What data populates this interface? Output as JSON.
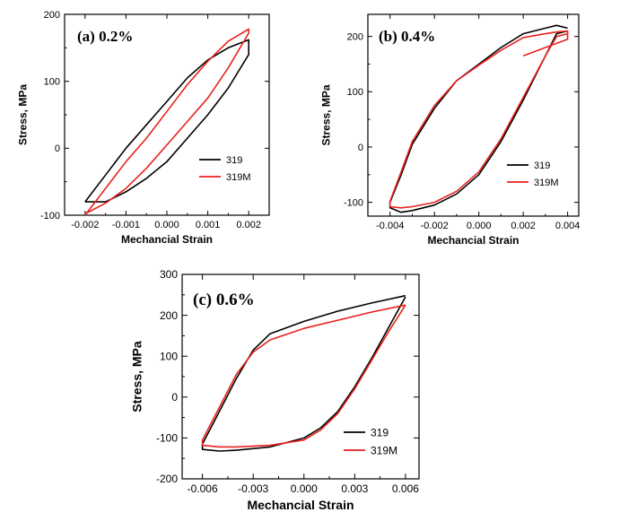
{
  "figure": {
    "colors": {
      "series_319": "#000000",
      "series_319M": "#e8211d",
      "axis": "#000000"
    }
  },
  "chart_data": [
    {
      "type": "line",
      "panel_label": "(a) 0.2%",
      "xlabel": "Mechancial Strain",
      "ylabel": "Stress, MPa",
      "xlim": [
        -0.0025,
        0.0025
      ],
      "ylim": [
        -100,
        200
      ],
      "xticks": [
        -0.002,
        -0.001,
        0.0,
        0.001,
        0.002
      ],
      "xtick_labels": [
        "-0.002",
        "-0.001",
        "0.000",
        "0.001",
        "0.002"
      ],
      "yticks": [
        -100,
        0,
        100,
        200
      ],
      "ytick_labels": [
        "-100",
        "0",
        "100",
        "200"
      ],
      "legend": {
        "position": "lower-right",
        "entries": [
          "319",
          "319M"
        ]
      },
      "series": [
        {
          "name": "319",
          "x": [
            -0.002,
            -0.0015,
            -0.001,
            -0.0005,
            0.0,
            0.0005,
            0.001,
            0.0015,
            0.002,
            0.002,
            0.0015,
            0.001,
            0.0005,
            0.0,
            -0.0005,
            -0.001,
            -0.0015,
            -0.002
          ],
          "y": [
            -80,
            -40,
            0,
            35,
            70,
            105,
            132,
            150,
            162,
            140,
            90,
            50,
            15,
            -20,
            -45,
            -65,
            -80,
            -80
          ]
        },
        {
          "name": "319M",
          "x": [
            -0.002,
            -0.0015,
            -0.001,
            -0.0005,
            0.0,
            0.0005,
            0.001,
            0.0015,
            0.002,
            0.002,
            0.0015,
            0.001,
            0.0005,
            0.0,
            -0.0005,
            -0.001,
            -0.0015,
            -0.002
          ],
          "y": [
            -100,
            -60,
            -20,
            15,
            55,
            95,
            130,
            160,
            178,
            172,
            120,
            75,
            40,
            5,
            -30,
            -60,
            -82,
            -98
          ]
        }
      ]
    },
    {
      "type": "line",
      "panel_label": "(b) 0.4%",
      "xlabel": "Mechancial Strain",
      "ylabel": "Stress, MPa",
      "xlim": [
        -0.005,
        0.0045
      ],
      "ylim": [
        -125,
        240
      ],
      "xticks": [
        -0.004,
        -0.002,
        0.0,
        0.002,
        0.004
      ],
      "xtick_labels": [
        "-0.004",
        "-0.002",
        "0.000",
        "0.002",
        "0.004"
      ],
      "yticks": [
        -100,
        0,
        100,
        200
      ],
      "ytick_labels": [
        "-100",
        "0",
        "100",
        "200"
      ],
      "legend": {
        "position": "lower-right",
        "entries": [
          "319",
          "319M"
        ]
      },
      "series": [
        {
          "name": "319",
          "x": [
            0.004,
            0.0035,
            0.003,
            0.002,
            0.001,
            0.0,
            -0.001,
            -0.002,
            -0.003,
            -0.0035,
            -0.004,
            -0.004,
            -0.0035,
            -0.003,
            -0.002,
            -0.001,
            0.0,
            0.001,
            0.002,
            0.003,
            0.0035,
            0.004
          ],
          "y": [
            210,
            205,
            165,
            85,
            10,
            -50,
            -85,
            -105,
            -115,
            -118,
            -110,
            -100,
            -50,
            5,
            70,
            120,
            150,
            180,
            205,
            215,
            220,
            215
          ]
        },
        {
          "name": "319M",
          "x": [
            0.004,
            0.0035,
            0.003,
            0.002,
            0.001,
            0.0,
            -0.001,
            -0.002,
            -0.003,
            -0.0035,
            -0.004,
            -0.004,
            -0.0035,
            -0.003,
            -0.002,
            -0.001,
            0.0,
            0.001,
            0.002,
            0.003,
            0.0035,
            0.004,
            0.004,
            0.002
          ],
          "y": [
            205,
            200,
            165,
            90,
            15,
            -45,
            -80,
            -100,
            -108,
            -110,
            -108,
            -98,
            -45,
            10,
            75,
            120,
            148,
            175,
            198,
            205,
            208,
            210,
            195,
            165
          ]
        }
      ]
    },
    {
      "type": "line",
      "panel_label": "(c) 0.6%",
      "xlabel": "Mechancial Strain",
      "ylabel": "Stress, MPa",
      "xlim": [
        -0.0072,
        0.0068
      ],
      "ylim": [
        -200,
        300
      ],
      "xticks": [
        -0.006,
        -0.003,
        0.0,
        0.003,
        0.006
      ],
      "xtick_labels": [
        "-0.006",
        "-0.003",
        "0.000",
        "0.003",
        "0.006"
      ],
      "yticks": [
        -200,
        -100,
        0,
        100,
        200,
        300
      ],
      "ytick_labels": [
        "-200",
        "-100",
        "0",
        "100",
        "200",
        "300"
      ],
      "legend": {
        "position": "lower-right",
        "entries": [
          "319",
          "319M"
        ]
      },
      "series": [
        {
          "name": "319",
          "x": [
            0.006,
            0.005,
            0.004,
            0.003,
            0.002,
            0.001,
            0.0,
            -0.002,
            -0.004,
            -0.005,
            -0.006,
            -0.006,
            -0.005,
            -0.004,
            -0.003,
            -0.002,
            0.0,
            0.002,
            0.004,
            0.006
          ],
          "y": [
            245,
            170,
            95,
            25,
            -35,
            -75,
            -100,
            -122,
            -130,
            -132,
            -128,
            -115,
            -35,
            45,
            115,
            155,
            185,
            210,
            230,
            248
          ]
        },
        {
          "name": "319M",
          "x": [
            0.006,
            0.005,
            0.004,
            0.003,
            0.002,
            0.001,
            0.0,
            -0.002,
            -0.004,
            -0.005,
            -0.006,
            -0.006,
            -0.005,
            -0.004,
            -0.003,
            -0.002,
            0.0,
            0.002,
            0.004,
            0.006
          ],
          "y": [
            225,
            160,
            90,
            20,
            -40,
            -80,
            -105,
            -118,
            -122,
            -122,
            -118,
            -105,
            -25,
            55,
            110,
            140,
            168,
            188,
            208,
            225
          ]
        }
      ]
    }
  ]
}
